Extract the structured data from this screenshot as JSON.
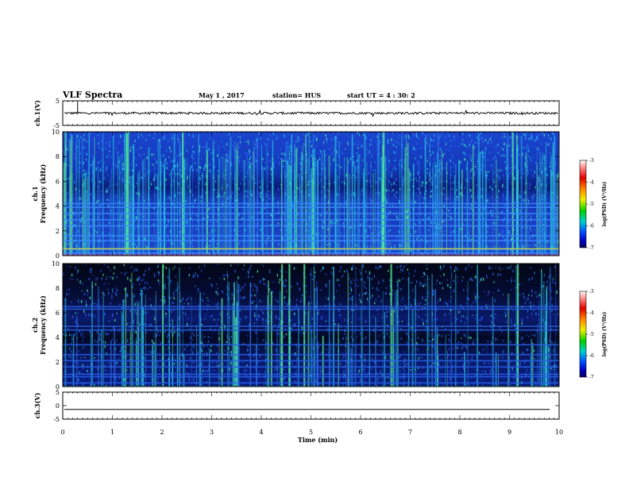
{
  "header": {
    "title": "VLF Spectra",
    "date": "May 1 , 2017",
    "station": "station= HUS",
    "start": "start UT =  4 : 30: 2"
  },
  "colors": {
    "spec_bg1": "#1532b0",
    "spec_bg2": "#050a2e",
    "spec_hot": "#30e8c8",
    "trace": "#000000"
  },
  "chart_data": [
    {
      "type": "line",
      "ylabel": "ch.1(V)",
      "ylim": [
        -5,
        5
      ],
      "yticks": [
        "5",
        "-5"
      ],
      "description_level": 0
    },
    {
      "type": "heatmap",
      "ylabel": "ch.1",
      "ylabel2": "Frequency (kHz)",
      "ylim": [
        0,
        10
      ],
      "yticks": [
        "10",
        "8",
        "6",
        "4",
        "2",
        "0"
      ],
      "colorbar": {
        "ticks": [
          "-3",
          "-4",
          "-5",
          "-6",
          "-7"
        ],
        "label": "log(PSD) (V²/Hz)"
      }
    },
    {
      "type": "heatmap",
      "ylabel": "ch.2",
      "ylabel2": "Frequency (kHz)",
      "ylim": [
        0,
        10
      ],
      "yticks": [
        "10",
        "8",
        "6",
        "4",
        "2",
        "0"
      ],
      "colorbar": {
        "ticks": [
          "-3",
          "-4",
          "-5",
          "-6",
          "-7"
        ],
        "label": "log(PSD) (V²/Hz)"
      }
    },
    {
      "type": "line",
      "ylabel": "ch.3(V)",
      "ylim": [
        -5,
        5
      ],
      "yticks": [
        "5",
        "0",
        "-5"
      ],
      "level": -1.4
    }
  ],
  "xaxis": {
    "xlabel": "Time (min)",
    "xlim": [
      0,
      10
    ],
    "ticks": [
      "0",
      "1",
      "2",
      "3",
      "4",
      "5",
      "6",
      "7",
      "8",
      "9",
      "10"
    ]
  }
}
